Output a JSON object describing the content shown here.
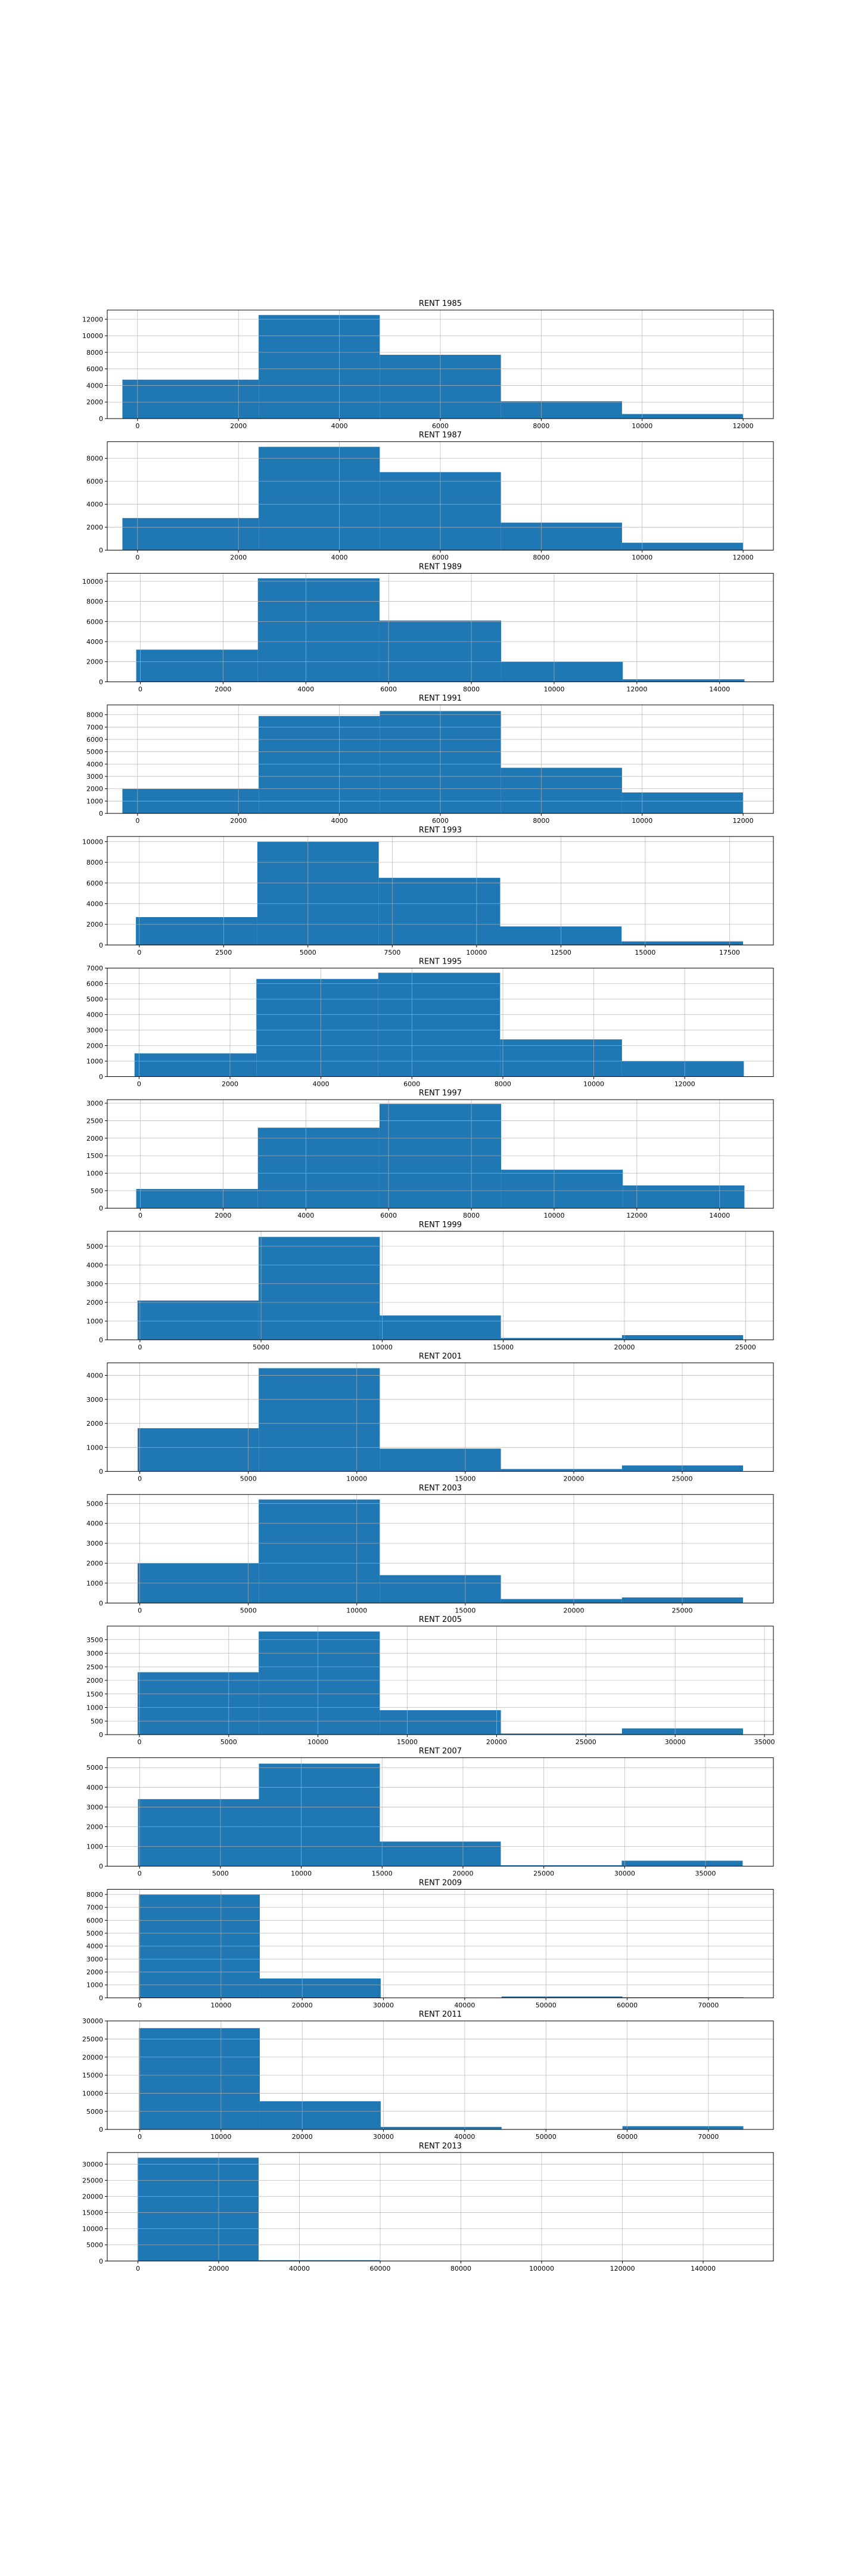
{
  "figure": {
    "background": "#ffffff",
    "bar_color": "#1f77b4",
    "grid_color": "#b0b0b0"
  },
  "chart_data": [
    {
      "type": "bar",
      "title": "RENT 1985",
      "grid": true,
      "bins": [
        [
          -300,
          2400
        ],
        [
          2400,
          4800
        ],
        [
          4800,
          7200
        ],
        [
          7200,
          9600
        ],
        [
          9600,
          12000
        ]
      ],
      "values": [
        4700,
        12500,
        7700,
        2100,
        550
      ],
      "xlim": [
        -600,
        12600
      ],
      "ylim": [
        0,
        13100
      ],
      "xticks": [
        0,
        2000,
        4000,
        6000,
        8000,
        10000,
        12000
      ],
      "yticks": [
        0,
        2000,
        4000,
        6000,
        8000,
        10000,
        12000
      ]
    },
    {
      "type": "bar",
      "title": "RENT 1987",
      "grid": true,
      "bins": [
        [
          -300,
          2400
        ],
        [
          2400,
          4800
        ],
        [
          4800,
          7200
        ],
        [
          7200,
          9600
        ],
        [
          9600,
          12000
        ]
      ],
      "values": [
        2800,
        9000,
        6800,
        2400,
        650
      ],
      "xlim": [
        -600,
        12600
      ],
      "ylim": [
        0,
        9450
      ],
      "xticks": [
        0,
        2000,
        4000,
        6000,
        8000,
        10000,
        12000
      ],
      "yticks": [
        0,
        2000,
        4000,
        6000,
        8000
      ]
    },
    {
      "type": "bar",
      "title": "RENT 1989",
      "grid": true,
      "bins": [
        [
          -100,
          2840
        ],
        [
          2840,
          5780
        ],
        [
          5780,
          8720
        ],
        [
          8720,
          11660
        ],
        [
          11660,
          14600
        ]
      ],
      "values": [
        3200,
        10300,
        6100,
        2000,
        250
      ],
      "xlim": [
        -800,
        15300
      ],
      "ylim": [
        0,
        10800
      ],
      "xticks": [
        0,
        2000,
        4000,
        6000,
        8000,
        10000,
        12000,
        14000
      ],
      "yticks": [
        0,
        2000,
        4000,
        6000,
        8000,
        10000
      ]
    },
    {
      "type": "bar",
      "title": "RENT 1991",
      "grid": true,
      "bins": [
        [
          -300,
          2400
        ],
        [
          2400,
          4800
        ],
        [
          4800,
          7200
        ],
        [
          7200,
          9600
        ],
        [
          9600,
          12000
        ]
      ],
      "values": [
        2000,
        7900,
        8300,
        3700,
        1700
      ],
      "xlim": [
        -600,
        12600
      ],
      "ylim": [
        0,
        8800
      ],
      "xticks": [
        0,
        2000,
        4000,
        6000,
        8000,
        10000,
        12000
      ],
      "yticks": [
        0,
        1000,
        2000,
        3000,
        4000,
        5000,
        6000,
        7000,
        8000
      ]
    },
    {
      "type": "bar",
      "title": "RENT 1993",
      "grid": true,
      "bins": [
        [
          -100,
          3500
        ],
        [
          3500,
          7100
        ],
        [
          7100,
          10700
        ],
        [
          10700,
          14300
        ],
        [
          14300,
          17900
        ]
      ],
      "values": [
        2700,
        10000,
        6500,
        1800,
        350
      ],
      "xlim": [
        -950,
        18800
      ],
      "ylim": [
        0,
        10500
      ],
      "xticks": [
        0,
        2500,
        5000,
        7500,
        10000,
        12500,
        15000,
        17500
      ],
      "yticks": [
        0,
        2000,
        4000,
        6000,
        8000,
        10000
      ]
    },
    {
      "type": "bar",
      "title": "RENT 1995",
      "grid": true,
      "bins": [
        [
          -100,
          2580
        ],
        [
          2580,
          5260
        ],
        [
          5260,
          7940
        ],
        [
          7940,
          10620
        ],
        [
          10620,
          13300
        ]
      ],
      "values": [
        1500,
        6300,
        6700,
        2400,
        1000
      ],
      "xlim": [
        -700,
        13950
      ],
      "ylim": [
        0,
        7000
      ],
      "xticks": [
        0,
        2000,
        4000,
        6000,
        8000,
        10000,
        12000
      ],
      "yticks": [
        0,
        1000,
        2000,
        3000,
        4000,
        5000,
        6000,
        7000
      ]
    },
    {
      "type": "bar",
      "title": "RENT 1997",
      "grid": true,
      "bins": [
        [
          -100,
          2840
        ],
        [
          2840,
          5780
        ],
        [
          5780,
          8720
        ],
        [
          8720,
          11660
        ],
        [
          11660,
          14600
        ]
      ],
      "values": [
        550,
        2300,
        2980,
        1100,
        650
      ],
      "xlim": [
        -800,
        15300
      ],
      "ylim": [
        0,
        3100
      ],
      "xticks": [
        0,
        2000,
        4000,
        6000,
        8000,
        10000,
        12000,
        14000
      ],
      "yticks": [
        0,
        500,
        1000,
        1500,
        2000,
        2500,
        3000
      ]
    },
    {
      "type": "bar",
      "title": "RENT 1999",
      "grid": true,
      "bins": [
        [
          -100,
          4900
        ],
        [
          4900,
          9900
        ],
        [
          9900,
          14900
        ],
        [
          14900,
          19900
        ],
        [
          19900,
          24900
        ]
      ],
      "values": [
        2100,
        5500,
        1300,
        100,
        250
      ],
      "xlim": [
        -1350,
        26150
      ],
      "ylim": [
        0,
        5800
      ],
      "xticks": [
        0,
        5000,
        10000,
        15000,
        20000,
        25000
      ],
      "yticks": [
        0,
        1000,
        2000,
        3000,
        4000,
        5000
      ]
    },
    {
      "type": "bar",
      "title": "RENT 2001",
      "grid": true,
      "bins": [
        [
          -100,
          5480
        ],
        [
          5480,
          11060
        ],
        [
          11060,
          16640
        ],
        [
          16640,
          22220
        ],
        [
          22220,
          27800
        ]
      ],
      "values": [
        1800,
        4300,
        950,
        100,
        250
      ],
      "xlim": [
        -1500,
        29200
      ],
      "ylim": [
        0,
        4520
      ],
      "xticks": [
        0,
        5000,
        10000,
        15000,
        20000,
        25000
      ],
      "yticks": [
        0,
        1000,
        2000,
        3000,
        4000
      ]
    },
    {
      "type": "bar",
      "title": "RENT 2003",
      "grid": true,
      "bins": [
        [
          -100,
          5480
        ],
        [
          5480,
          11060
        ],
        [
          11060,
          16640
        ],
        [
          16640,
          22220
        ],
        [
          22220,
          27800
        ]
      ],
      "values": [
        2000,
        5200,
        1400,
        200,
        280
      ],
      "xlim": [
        -1500,
        29200
      ],
      "ylim": [
        0,
        5450
      ],
      "xticks": [
        0,
        5000,
        10000,
        15000,
        20000,
        25000
      ],
      "yticks": [
        0,
        1000,
        2000,
        3000,
        4000,
        5000
      ]
    },
    {
      "type": "bar",
      "title": "RENT 2005",
      "grid": true,
      "bins": [
        [
          -100,
          6680
        ],
        [
          6680,
          13460
        ],
        [
          13460,
          20240
        ],
        [
          20240,
          27020
        ],
        [
          27020,
          33800
        ]
      ],
      "values": [
        2300,
        3800,
        900,
        40,
        230
      ],
      "xlim": [
        -1800,
        35500
      ],
      "ylim": [
        0,
        4000
      ],
      "xticks": [
        0,
        5000,
        10000,
        15000,
        20000,
        25000,
        30000,
        35000
      ],
      "yticks": [
        0,
        500,
        1000,
        1500,
        2000,
        2500,
        3000,
        3500
      ]
    },
    {
      "type": "bar",
      "title": "RENT 2007",
      "grid": true,
      "bins": [
        [
          -100,
          7380
        ],
        [
          7380,
          14860
        ],
        [
          14860,
          22340
        ],
        [
          22340,
          29820
        ],
        [
          29820,
          37300
        ]
      ],
      "values": [
        3400,
        5200,
        1250,
        50,
        280
      ],
      "xlim": [
        -2000,
        39200
      ],
      "ylim": [
        0,
        5500
      ],
      "xticks": [
        0,
        5000,
        10000,
        15000,
        20000,
        25000,
        30000,
        35000
      ],
      "yticks": [
        0,
        1000,
        2000,
        3000,
        4000,
        5000
      ]
    },
    {
      "type": "bar",
      "title": "RENT 2009",
      "grid": true,
      "bins": [
        [
          -100,
          14780
        ],
        [
          14780,
          29660
        ],
        [
          29660,
          44540
        ],
        [
          44540,
          59420
        ],
        [
          59420,
          74300
        ]
      ],
      "values": [
        8000,
        1500,
        20,
        100,
        40
      ],
      "xlim": [
        -4000,
        78000
      ],
      "ylim": [
        0,
        8400
      ],
      "xticks": [
        0,
        10000,
        20000,
        30000,
        40000,
        50000,
        60000,
        70000
      ],
      "yticks": [
        0,
        1000,
        2000,
        3000,
        4000,
        5000,
        6000,
        7000,
        8000
      ]
    },
    {
      "type": "bar",
      "title": "RENT 2011",
      "grid": true,
      "bins": [
        [
          -100,
          14780
        ],
        [
          14780,
          29660
        ],
        [
          29660,
          44540
        ],
        [
          44540,
          59420
        ],
        [
          59420,
          74300
        ]
      ],
      "values": [
        28000,
        7800,
        700,
        80,
        900
      ],
      "xlim": [
        -4000,
        78000
      ],
      "ylim": [
        0,
        30000
      ],
      "xticks": [
        0,
        10000,
        20000,
        30000,
        40000,
        50000,
        60000,
        70000
      ],
      "yticks": [
        0,
        5000,
        10000,
        15000,
        20000,
        25000,
        30000
      ]
    },
    {
      "type": "bar",
      "title": "RENT 2013",
      "grid": true,
      "bins": [
        [
          -100,
          29900
        ],
        [
          29900,
          59900
        ],
        [
          59900,
          89900
        ],
        [
          89900,
          119900
        ],
        [
          119900,
          149900
        ]
      ],
      "values": [
        32000,
        250,
        80,
        50,
        30
      ],
      "xlim": [
        -7600,
        157400
      ],
      "ylim": [
        0,
        33600
      ],
      "xticks": [
        0,
        20000,
        40000,
        60000,
        80000,
        100000,
        120000,
        140000
      ],
      "yticks": [
        0,
        5000,
        10000,
        15000,
        20000,
        25000,
        30000
      ]
    }
  ]
}
